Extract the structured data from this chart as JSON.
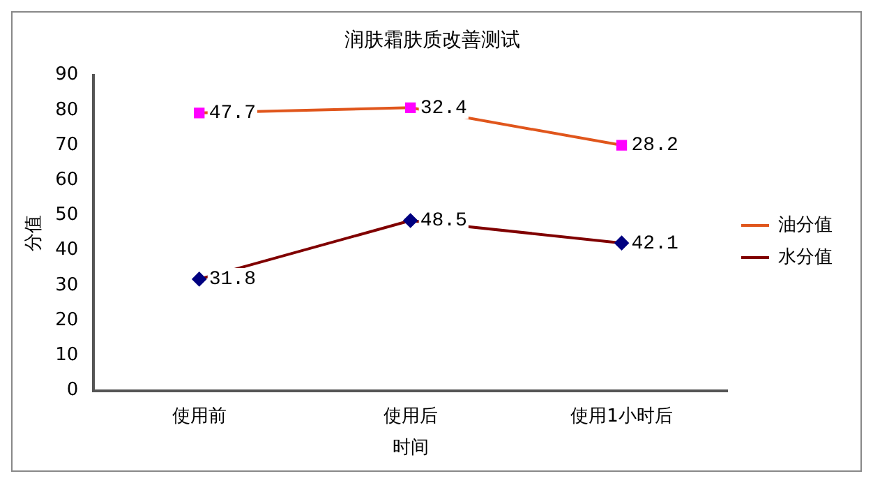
{
  "chart_data": {
    "type": "line",
    "title": "润肤霜肤质改善测试",
    "xlabel": "时间",
    "ylabel": "分值",
    "categories": [
      "使用前",
      "使用后",
      "使用1小时后"
    ],
    "series": [
      {
        "name": "油分值",
        "color": "#e0561c",
        "colors": [
          "#ff00ff",
          "#ff00ff",
          "#ff00ff"
        ],
        "marker": "square",
        "values": [
          79.2,
          80.7,
          70
        ]
      },
      {
        "name": "水分值",
        "color": "#800000",
        "colors": [
          "#000080",
          "#000080",
          "#000080"
        ],
        "marker": "diamond",
        "values": [
          31.8,
          48.5,
          42.1
        ],
        "value_labels": [
          "31.8",
          "48.5",
          "42.1"
        ]
      }
    ],
    "annotations": [
      {
        "text": "47.7",
        "x": "使用前",
        "y": 79.2
      },
      {
        "text": "32.4",
        "x": "使用后",
        "y": 80.7
      },
      {
        "text": "28.2",
        "x": "使用1小时后",
        "y": 70
      }
    ],
    "ylim": [
      0,
      90
    ],
    "yticks": [
      0,
      10,
      20,
      30,
      40,
      50,
      60,
      70,
      80,
      90
    ],
    "grid": false,
    "legend": "right"
  }
}
